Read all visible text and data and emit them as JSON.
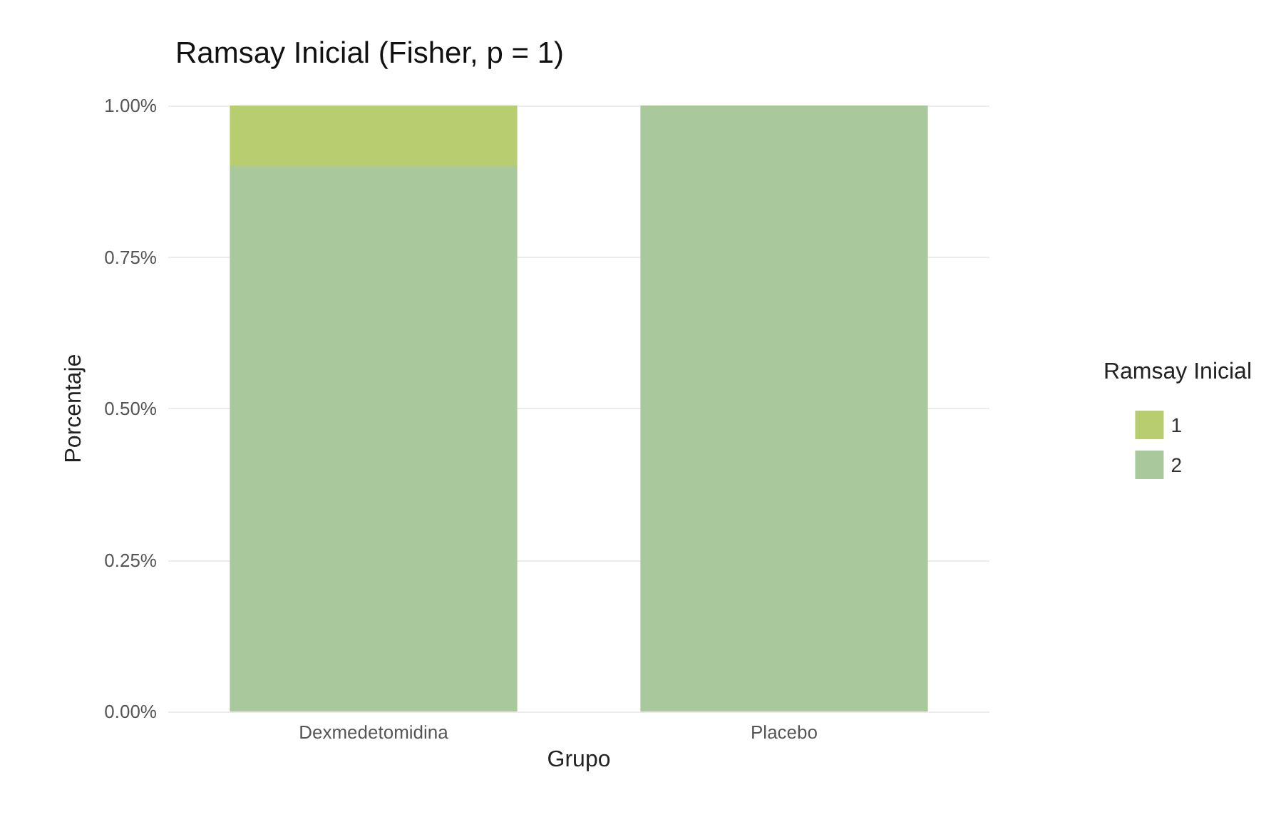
{
  "chart_data": {
    "type": "bar",
    "title": "Ramsay Inicial (Fisher, p = 1)",
    "xlabel": "Grupo",
    "ylabel": "Porcentaje",
    "legend_title": "Ramsay Inicial",
    "categories": [
      "Dexmedetomidina",
      "Placebo"
    ],
    "series": [
      {
        "name": "2",
        "color": "#a9c99d",
        "values": [
          0.9,
          1
        ]
      },
      {
        "name": "1",
        "color": "#b7cd70",
        "values": [
          0.1,
          0
        ]
      }
    ],
    "stacked": true,
    "ylim": [
      0,
      1
    ],
    "yticks": [
      {
        "value": 0,
        "label": "0.00%"
      },
      {
        "value": 0.25,
        "label": "0.25%"
      },
      {
        "value": 0.5,
        "label": "0.50%"
      },
      {
        "value": 0.75,
        "label": "0.75%"
      },
      {
        "value": 1,
        "label": "1.00%"
      }
    ],
    "grid": "y",
    "legend": "right"
  }
}
